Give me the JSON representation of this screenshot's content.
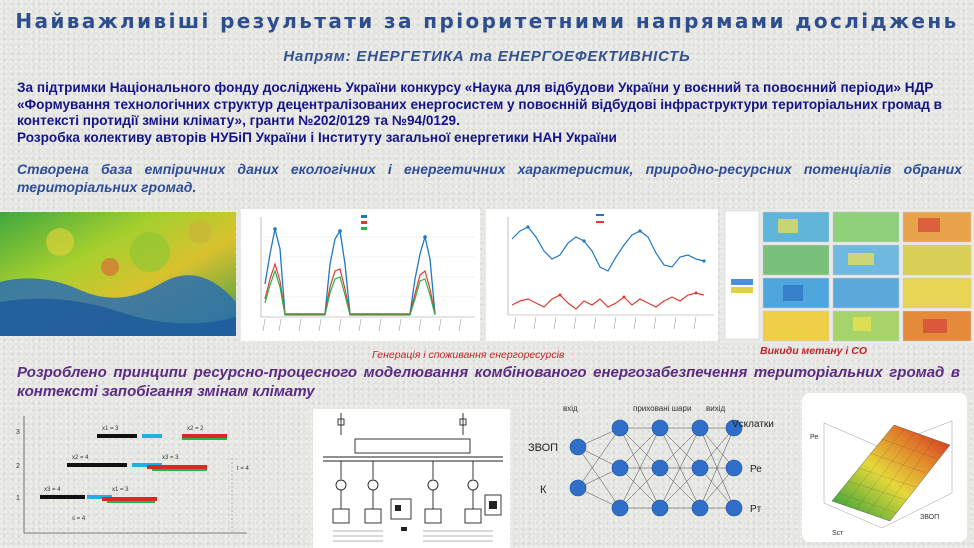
{
  "title": "Найважливіші результати за пріоритетними напрямами досліджень",
  "subtitle": "Напрям: ЕНЕРГЕТИКА та ЕНЕРГОЕФЕКТИВНІСТЬ",
  "support_text": "За підтримки Національного фонду досліджень України конкурсу «Наука для відбудови України у воєнний та повоєнний періоди» НДР «Формування технологічних структур децентралізованих енергосистем у повоєнній відбудові інфраструктури територіальних громад в контексті протидії зміни клімату», гранти №202/0129 та №94/0129.",
  "developed_by": "Розробка колективу авторів НУБіП України і Інституту загальної енергетики НАН України",
  "result_1": "Створена база емпіричних даних екологічних і енергетичних характеристик, природно-ресурсних потенціалів обраних територіальних громад.",
  "caption_generation": "Генерація і споживання енергоресурсів",
  "caption_methane": "Викиди метану і СО",
  "result_2": "Розроблено принципи ресурсно-процесного моделювання комбінованого енергозабезпечення територіальних громад в контексті запобігання змінам клімату",
  "nn": {
    "input_1": "ЗВОП",
    "input_2": "К",
    "output_1": "Vсклатки",
    "output_2": "Ре",
    "output_3": "Рт",
    "hdr_in": "вхід",
    "hdr_hidden": "приховані шари",
    "hdr_out": "вихід"
  },
  "surface": {
    "axis_z": "Ре",
    "axis_y": "Ѕст",
    "axis_x": "ЗВОП"
  },
  "colors": {
    "title": "#2e4f8f",
    "support": "#14148a",
    "italic": "#2e4d9a",
    "purple": "#5a2a84",
    "caption": "#c0252a",
    "node": "#2f6fc9",
    "series_blue": "#1f78c4",
    "series_red": "#e03a2c",
    "series_green": "#26b34a"
  }
}
